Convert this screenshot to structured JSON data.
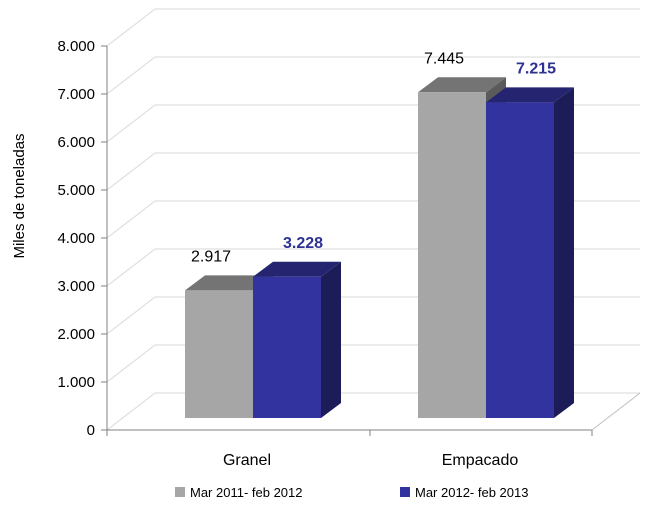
{
  "chart_data": {
    "type": "bar",
    "title": "",
    "xlabel": "",
    "ylabel": "Miles de toneladas",
    "ylim": [
      0,
      8000
    ],
    "yticks": [
      "0",
      "1.000",
      "2.000",
      "3.000",
      "4.000",
      "5.000",
      "6.000",
      "7.000",
      "8.000"
    ],
    "categories": [
      "Granel",
      "Empacado"
    ],
    "series": [
      {
        "name": "Mar 2011- feb 2012",
        "values": [
          2917,
          7445
        ],
        "labels": [
          "2.917",
          "7.445"
        ],
        "color": "#a6a6a6",
        "label_color": "#000000"
      },
      {
        "name": "Mar 2012- feb 2013",
        "values": [
          3228,
          7215
        ],
        "labels": [
          "3.228",
          "7.215"
        ],
        "color": "#3333a0",
        "label_color": "#2e3192"
      }
    ],
    "grid": true,
    "style": "3d-clustered-column",
    "legend_position": "bottom"
  }
}
